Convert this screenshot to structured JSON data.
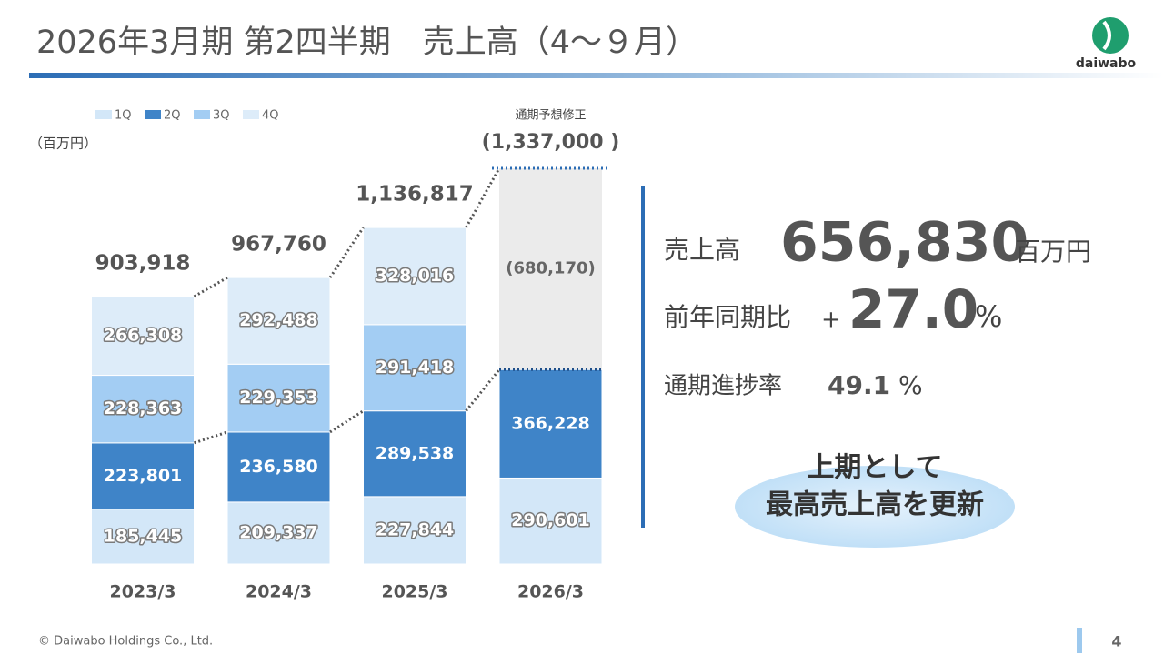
{
  "header": {
    "title": "2026年3月期 第2四半期　売上高（4～９月）",
    "logo": "daiwabo"
  },
  "chart_data": {
    "type": "stacked-bar",
    "unit": "（百万円）",
    "categories": [
      "2023/3",
      "2024/3",
      "2025/3",
      "2026/3"
    ],
    "series": [
      {
        "name": "1Q",
        "color": "#d3e7f8",
        "values": [
          185445,
          209337,
          227844,
          290601
        ],
        "value_labels": [
          "185,445",
          "209,337",
          "227,844",
          "290,601"
        ]
      },
      {
        "name": "2Q",
        "color": "#3f84c8",
        "values": [
          223801,
          236580,
          289538,
          366228
        ],
        "value_labels": [
          "223,801",
          "236,580",
          "289,538",
          "366,228"
        ]
      },
      {
        "name": "3Q",
        "color": "#a3cdf3",
        "values": [
          228363,
          229353,
          291418,
          null
        ],
        "value_labels": [
          "228,363",
          "229,353",
          "291,418",
          null
        ]
      },
      {
        "name": "4Q",
        "color": "#ddecf9",
        "values": [
          266308,
          292488,
          328016,
          null
        ],
        "value_labels": [
          "266,308",
          "292,488",
          "328,016",
          null
        ]
      }
    ],
    "totals": [
      903918,
      967760,
      1136817,
      null
    ],
    "total_labels": [
      "903,918",
      "967,760",
      "1,136,817",
      null
    ],
    "forecast": {
      "label": "通期予想修正",
      "total": 1337000,
      "total_label": "(1,337,000 )",
      "remainder": 680170,
      "remainder_label": "(680,170)",
      "color": "#ebebeb"
    }
  },
  "summary": {
    "sales_label": "売上高",
    "sales_value": "656,830",
    "sales_unit": "百万円",
    "yoy_label": "前年同期比",
    "yoy_sign": "+",
    "yoy_value": "27.0",
    "yoy_unit": "%",
    "progress_label": "通期進捗率",
    "progress_value": "49.1",
    "progress_unit": "%",
    "callout_line1": "上期として",
    "callout_line2": "最高売上高を更新"
  },
  "footer": {
    "copyright": "© Daiwabo Holdings Co., Ltd.",
    "page": "4"
  }
}
